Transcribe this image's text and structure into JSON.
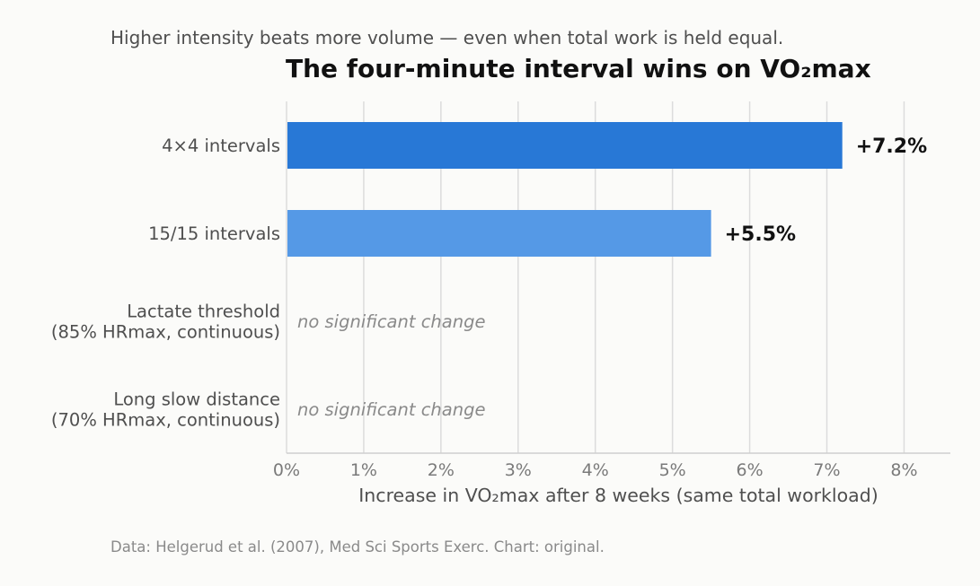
{
  "header": {
    "subtitle": "Higher intensity beats more volume — even when total work is held equal.",
    "title": "The four-minute interval wins on VO₂max"
  },
  "footer": {
    "source": "Data: Helgerud et al. (2007), Med Sci Sports Exerc. Chart: original."
  },
  "chart_data": {
    "type": "bar",
    "orientation": "horizontal",
    "title": "The four-minute interval wins on VO₂max",
    "subtitle": "Higher intensity beats more volume — even when total work is held equal.",
    "xlabel": "Increase in VO₂max after 8 weeks (same total workload)",
    "ylabel": "",
    "xlim": [
      0,
      8.6
    ],
    "xticks": [
      0,
      1,
      2,
      3,
      4,
      5,
      6,
      7,
      8
    ],
    "tick_suffix": "%",
    "grid": "vertical",
    "categories": [
      [
        "4×4 intervals"
      ],
      [
        "15/15 intervals"
      ],
      [
        "Lactate threshold",
        "(85% HRmax, continuous)"
      ],
      [
        "Long slow distance",
        "(70% HRmax, continuous)"
      ]
    ],
    "values": [
      7.2,
      5.5,
      null,
      null
    ],
    "value_labels": [
      "+7.2%",
      "+5.5%",
      "no significant change",
      "no significant change"
    ],
    "colors": [
      "#2878d6",
      "#5599e6",
      null,
      null
    ]
  }
}
